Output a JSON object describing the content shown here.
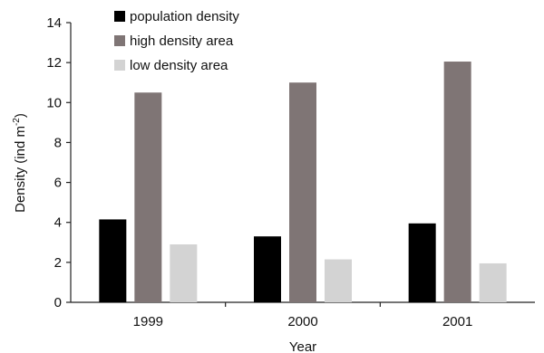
{
  "chart_data": {
    "type": "bar",
    "categories": [
      "1999",
      "2000",
      "2001"
    ],
    "series": [
      {
        "name": "population density",
        "values": [
          4.15,
          3.3,
          3.95
        ],
        "color": "#000000"
      },
      {
        "name": "high density area",
        "values": [
          10.5,
          11.0,
          12.05
        ],
        "color": "#7f7575"
      },
      {
        "name": "low density area",
        "values": [
          2.9,
          2.15,
          1.95
        ],
        "color": "#d3d3d3"
      }
    ],
    "xlabel": "Year",
    "ylabel_main": "Density (ind m",
    "ylabel_sup": "-2",
    "ylabel_end": ")",
    "ylim": [
      0,
      14
    ],
    "yticks": [
      "0",
      "2",
      "4",
      "6",
      "8",
      "10",
      "12",
      "14"
    ],
    "grid": false,
    "legend_position": "top-left"
  }
}
